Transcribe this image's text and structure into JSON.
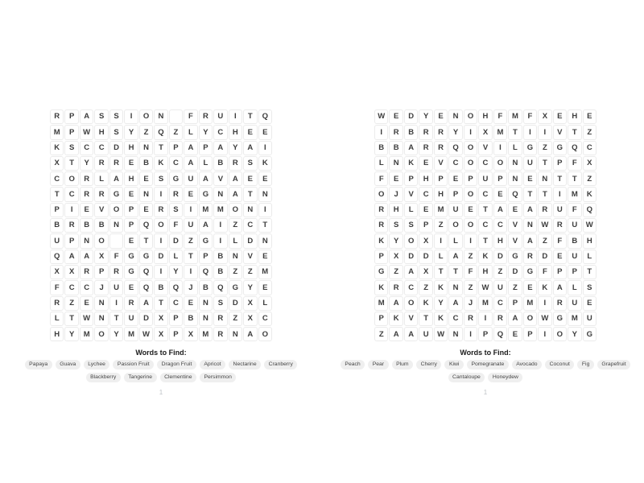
{
  "colors": {
    "page_background": "#ffffff",
    "cell_border": "#ebebeb",
    "letter": "#3d3d3d",
    "chip_background": "#efefef",
    "chip_text": "#454545",
    "heading_text": "#1b1b1b",
    "page_number_text": "#bfc2c7"
  },
  "puzzles": [
    {
      "words_heading": "Words to Find:",
      "page_number": "1",
      "grid_rows": [
        "RPASSION FRUITQ",
        "MPWHSYZQZLYCHEE",
        "KSCCDHNTPAPAYAI",
        "XTYRREBKCALBRSK",
        "CORLAHESGUAVAEE",
        "TCRRGENIREGNATN",
        "PIEVOPERSIMMONI",
        "BRBBNPQOFUAIZCT",
        "UPNO ETIDZGILDN",
        "QAAXFGGDLTPBNVE",
        "XXRPRGQIYIQBZZM",
        "FCCJUEQBQJBQGYE",
        "RZENIRATCENSDXL",
        "LTWNTUDXPBNRZXC",
        "HYMOYMWXPXMRNAO"
      ],
      "word_rows": [
        [
          "Papaya",
          "Guava",
          "Lychee",
          "Passion Fruit",
          "Dragon Fruit",
          "Apricot",
          "Nectarine",
          "Cranberry"
        ],
        [
          "Blackberry",
          "Tangerine",
          "Clementine",
          "Persimmon"
        ]
      ]
    },
    {
      "words_heading": "Words to Find:",
      "page_number": "1",
      "grid_rows": [
        "WEDYENOHFMFXEHE",
        "IRBRRYIXMTIIVTZ",
        "BBARRQOVILGZGQC",
        "LNKEVCOCONUTPFX",
        "FEPHPEPUPNENTTZ",
        "OJVCHPOCEQTTIMK",
        "RHLEMUETAEARUFQ",
        "RSSPZOOCCVNWRUW",
        "KYOXILITHVAZFBH",
        "PXDDLAZKDGRDEUL",
        "GZAXTTFHZDGFPPT",
        "KRCZKNZWUZEKALS",
        "MAOKYAJMCPMIRUE",
        "PKVTKCRIRAOWGMU",
        "ZAAUWNIPQEPIOYG"
      ],
      "word_rows": [
        [
          "Peach",
          "Pear",
          "Plum",
          "Cherry",
          "Kiwi",
          "Pomegranate",
          "Avocado",
          "Coconut",
          "Fig",
          "Grapefruit"
        ],
        [
          "Cantaloupe",
          "Honeydew"
        ]
      ]
    }
  ]
}
